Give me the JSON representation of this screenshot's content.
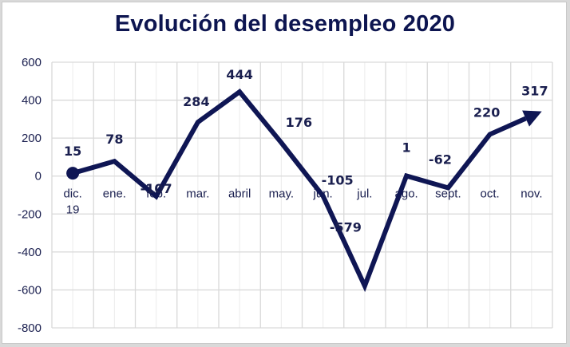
{
  "chart_data": {
    "type": "line",
    "title": "Evolución del desempleo 2020",
    "xlabel": "",
    "ylabel": "",
    "categories": [
      "dic. 19",
      "ene.",
      "feb.",
      "mar.",
      "abril",
      "may.",
      "jun.",
      "jul.",
      "ago.",
      "sept.",
      "oct.",
      "nov."
    ],
    "series": [
      {
        "name": "Evolución del desempleo",
        "values": [
          15,
          78,
          -107,
          284,
          444,
          176,
          -105,
          -579,
          1,
          -62,
          220,
          317
        ],
        "data_labels": [
          "15",
          "78",
          "-107",
          "284",
          "444",
          "176",
          "-105",
          "-579",
          "1",
          "-62",
          "220",
          "317"
        ]
      }
    ],
    "ylim": [
      -800,
      600
    ],
    "yticks": [
      600,
      400,
      200,
      0,
      -200,
      -400,
      -600,
      -800
    ],
    "grid": true,
    "legend": "none",
    "markers": {
      "start": "circle",
      "end": "arrow"
    }
  },
  "colors": {
    "line": "#0f1654",
    "text": "#1a1f4f",
    "title": "#0d1550",
    "grid": "#d9d9d9",
    "grid_minor": "#ececec"
  }
}
